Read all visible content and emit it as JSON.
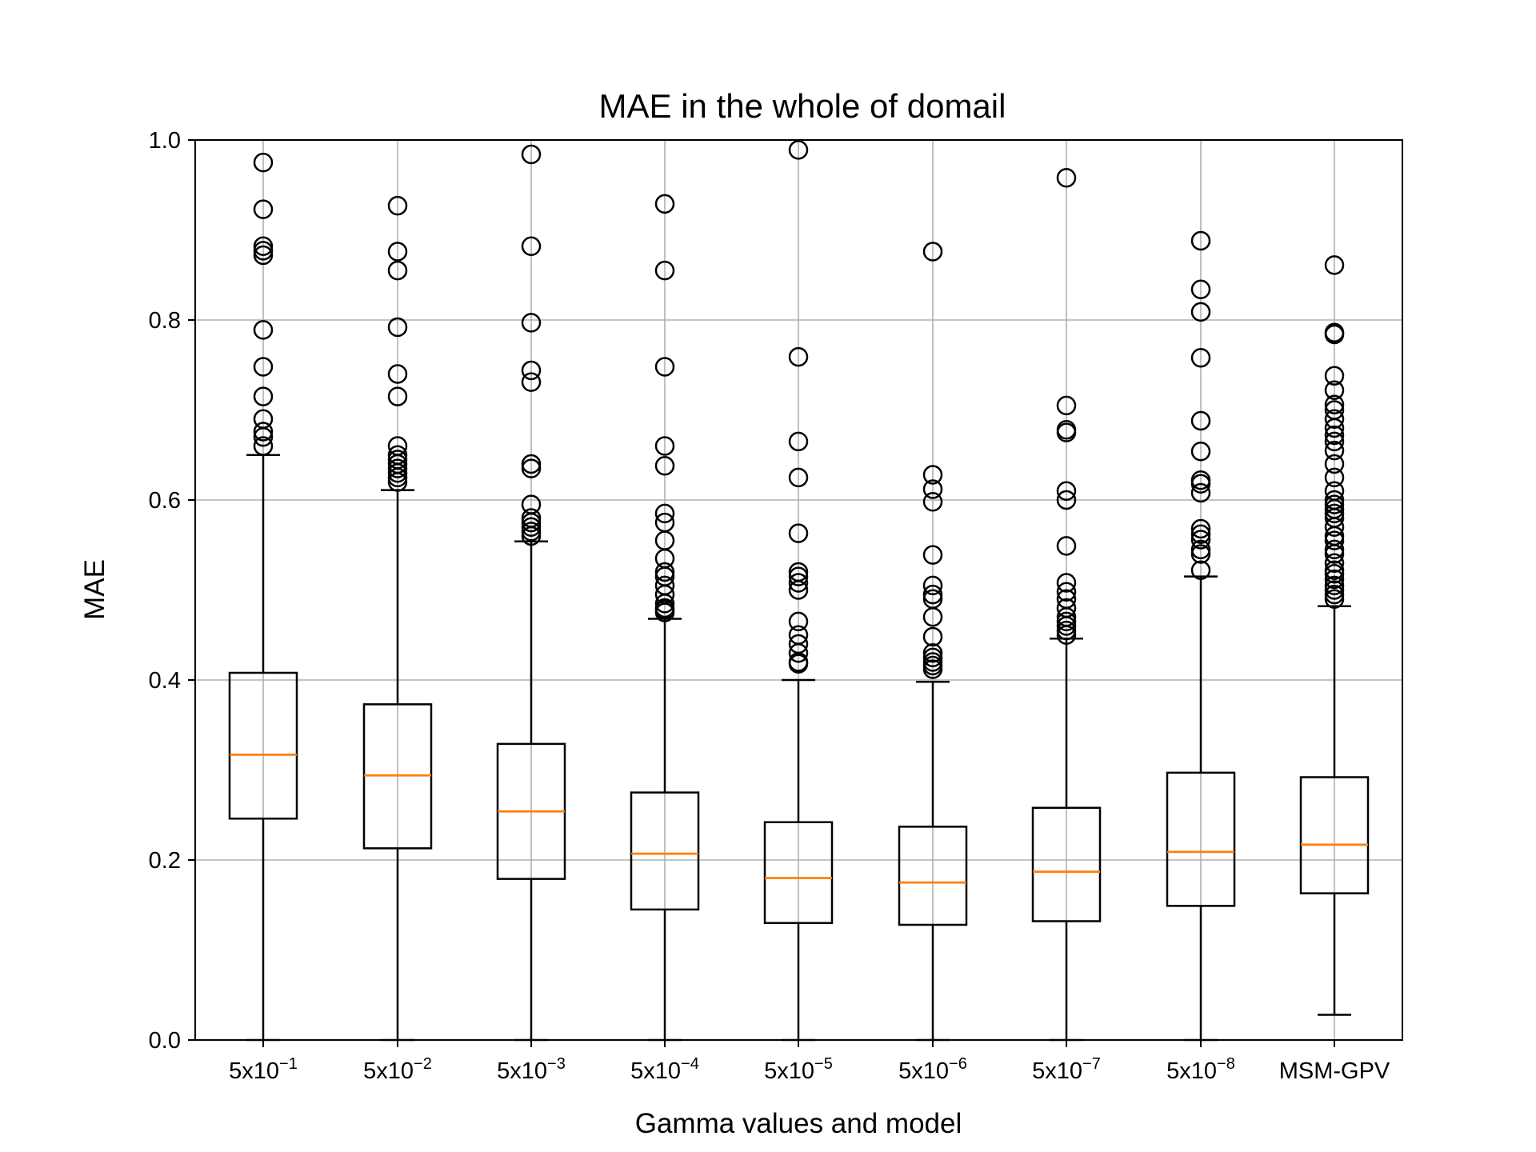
{
  "chart_data": {
    "type": "boxplot",
    "title": "MAE in the whole of domail",
    "xlabel": "Gamma values and model",
    "ylabel": "MAE",
    "ylim": [
      0,
      1.0
    ],
    "yticks": [
      "0.0",
      "0.2",
      "0.4",
      "0.6",
      "0.8",
      "1.0"
    ],
    "grid": true,
    "colors": {
      "box": "#000000",
      "median": "#ff7f0e",
      "grid": "#b0b0b0"
    },
    "categories": [
      {
        "base": "5x10",
        "exp": "−1"
      },
      {
        "base": "5x10",
        "exp": "−2"
      },
      {
        "base": "5x10",
        "exp": "−3"
      },
      {
        "base": "5x10",
        "exp": "−4"
      },
      {
        "base": "5x10",
        "exp": "−5"
      },
      {
        "base": "5x10",
        "exp": "−6"
      },
      {
        "base": "5x10",
        "exp": "−7"
      },
      {
        "base": "5x10",
        "exp": "−8"
      },
      {
        "base": "MSM-GPV",
        "exp": ""
      }
    ],
    "boxes": [
      {
        "whislo": 0.0,
        "q1": 0.246,
        "med": 0.317,
        "q3": 0.408,
        "whishi": 0.65,
        "fliers": [
          0.975,
          0.923,
          0.882,
          0.877,
          0.872,
          0.789,
          0.748,
          0.715,
          0.69,
          0.676,
          0.67,
          0.66
        ]
      },
      {
        "whislo": 0.0,
        "q1": 0.213,
        "med": 0.294,
        "q3": 0.373,
        "whishi": 0.611,
        "fliers": [
          0.927,
          0.876,
          0.855,
          0.792,
          0.74,
          0.715,
          0.66,
          0.65,
          0.645,
          0.64,
          0.635,
          0.63,
          0.625,
          0.62
        ]
      },
      {
        "whislo": 0.0,
        "q1": 0.179,
        "med": 0.254,
        "q3": 0.329,
        "whishi": 0.554,
        "fliers": [
          0.984,
          0.882,
          0.797,
          0.744,
          0.731,
          0.64,
          0.635,
          0.595,
          0.58,
          0.575,
          0.57,
          0.565,
          0.56
        ]
      },
      {
        "whislo": 0.0,
        "q1": 0.145,
        "med": 0.207,
        "q3": 0.275,
        "whishi": 0.468,
        "fliers": [
          0.929,
          0.855,
          0.748,
          0.66,
          0.638,
          0.585,
          0.575,
          0.555,
          0.535,
          0.52,
          0.515,
          0.505,
          0.495,
          0.485,
          0.48,
          0.478,
          0.475
        ]
      },
      {
        "whislo": 0.0,
        "q1": 0.13,
        "med": 0.18,
        "q3": 0.242,
        "whishi": 0.4,
        "fliers": [
          0.989,
          0.759,
          0.665,
          0.625,
          0.563,
          0.52,
          0.515,
          0.508,
          0.5,
          0.465,
          0.45,
          0.44,
          0.43,
          0.42,
          0.418
        ]
      },
      {
        "whislo": 0.0,
        "q1": 0.128,
        "med": 0.175,
        "q3": 0.237,
        "whishi": 0.398,
        "fliers": [
          0.876,
          0.628,
          0.612,
          0.598,
          0.539,
          0.505,
          0.495,
          0.49,
          0.47,
          0.448,
          0.43,
          0.425,
          0.42,
          0.416,
          0.412
        ]
      },
      {
        "whislo": 0.0,
        "q1": 0.132,
        "med": 0.187,
        "q3": 0.258,
        "whishi": 0.446,
        "fliers": [
          0.958,
          0.705,
          0.678,
          0.675,
          0.61,
          0.6,
          0.549,
          0.508,
          0.498,
          0.49,
          0.48,
          0.47,
          0.465,
          0.46,
          0.455,
          0.45
        ]
      },
      {
        "whislo": 0.0,
        "q1": 0.149,
        "med": 0.209,
        "q3": 0.297,
        "whishi": 0.515,
        "fliers": [
          0.888,
          0.834,
          0.809,
          0.758,
          0.688,
          0.654,
          0.622,
          0.618,
          0.608,
          0.568,
          0.562,
          0.556,
          0.545,
          0.54,
          0.522
        ]
      },
      {
        "whislo": 0.028,
        "q1": 0.163,
        "med": 0.217,
        "q3": 0.292,
        "whishi": 0.482,
        "fliers": [
          0.861,
          0.786,
          0.784,
          0.738,
          0.722,
          0.706,
          0.7,
          0.69,
          0.68,
          0.672,
          0.665,
          0.655,
          0.64,
          0.625,
          0.61,
          0.6,
          0.595,
          0.59,
          0.585,
          0.58,
          0.57,
          0.56,
          0.555,
          0.545,
          0.54,
          0.53,
          0.522,
          0.518,
          0.512,
          0.505,
          0.5,
          0.495,
          0.49
        ]
      }
    ]
  }
}
